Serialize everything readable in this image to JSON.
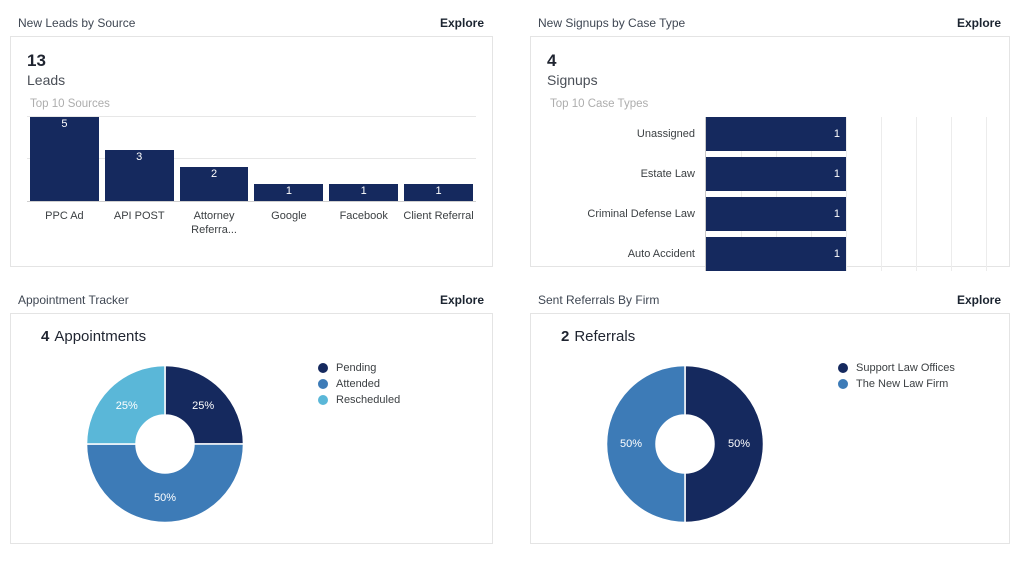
{
  "colors": {
    "navy": "#15295e",
    "medium_blue": "#3d7bb7",
    "light_blue": "#5ab7d8",
    "grid": "#e7e7e7",
    "axis": "#c9c9c9",
    "card_border": "#e4e4e4",
    "text_dark": "#1f2430",
    "text_gray": "#3c4043",
    "muted": "#adadad"
  },
  "panels": {
    "leads": {
      "title": "New Leads by Source",
      "explore": "Explore",
      "stat_value": "13",
      "stat_label": "Leads",
      "subtitle": "Top 10 Sources"
    },
    "signups": {
      "title": "New Signups by Case Type",
      "explore": "Explore",
      "stat_value": "4",
      "stat_label": "Signups",
      "subtitle": "Top 10 Case Types"
    },
    "appointments": {
      "title": "Appointment Tracker",
      "explore": "Explore",
      "stat_value": "4",
      "stat_label": "Appointments"
    },
    "referrals": {
      "title": "Sent Referrals By Firm",
      "explore": "Explore",
      "stat_value": "2",
      "stat_label": "Referrals"
    }
  },
  "chart_data": [
    {
      "id": "leads_by_source",
      "type": "bar",
      "orientation": "vertical",
      "title": "Top 10 Sources",
      "categories": [
        "PPC Ad",
        "API POST",
        "Attorney Referra...",
        "Google",
        "Facebook",
        "Client Referral"
      ],
      "values": [
        5,
        3,
        2,
        1,
        1,
        1
      ],
      "data_labels": [
        "5",
        "3",
        "2",
        "1",
        "1",
        "1"
      ],
      "ylim": [
        0,
        5
      ],
      "gridlines": [
        2.5,
        5
      ],
      "bar_color": "#15295e",
      "legend_position": "none"
    },
    {
      "id": "signups_by_case_type",
      "type": "bar",
      "orientation": "horizontal",
      "title": "Top 10 Case Types",
      "categories": [
        "Unassigned",
        "Estate Law",
        "Criminal Defense Law",
        "Auto Accident"
      ],
      "values": [
        1,
        1,
        1,
        1
      ],
      "data_labels": [
        "1",
        "1",
        "1",
        "1"
      ],
      "xlim": [
        0,
        2.05
      ],
      "grid_step": 0.25,
      "bar_color": "#15295e",
      "legend_position": "none"
    },
    {
      "id": "appointment_tracker",
      "type": "pie",
      "donut": true,
      "title": "Appointment Tracker",
      "labels": [
        "Pending",
        "Attended",
        "Rescheduled"
      ],
      "values": [
        25,
        50,
        25
      ],
      "value_labels": [
        "25%",
        "50%",
        "25%"
      ],
      "colors": [
        "#15295e",
        "#3d7bb7",
        "#5ab7d8"
      ],
      "legend_position": "right"
    },
    {
      "id": "sent_referrals",
      "type": "pie",
      "donut": true,
      "title": "Sent Referrals By Firm",
      "labels": [
        "Support Law Offices",
        "The New Law Firm"
      ],
      "values": [
        50,
        50
      ],
      "value_labels": [
        "50%",
        "50%"
      ],
      "colors": [
        "#15295e",
        "#3d7bb7"
      ],
      "legend_position": "right"
    }
  ]
}
